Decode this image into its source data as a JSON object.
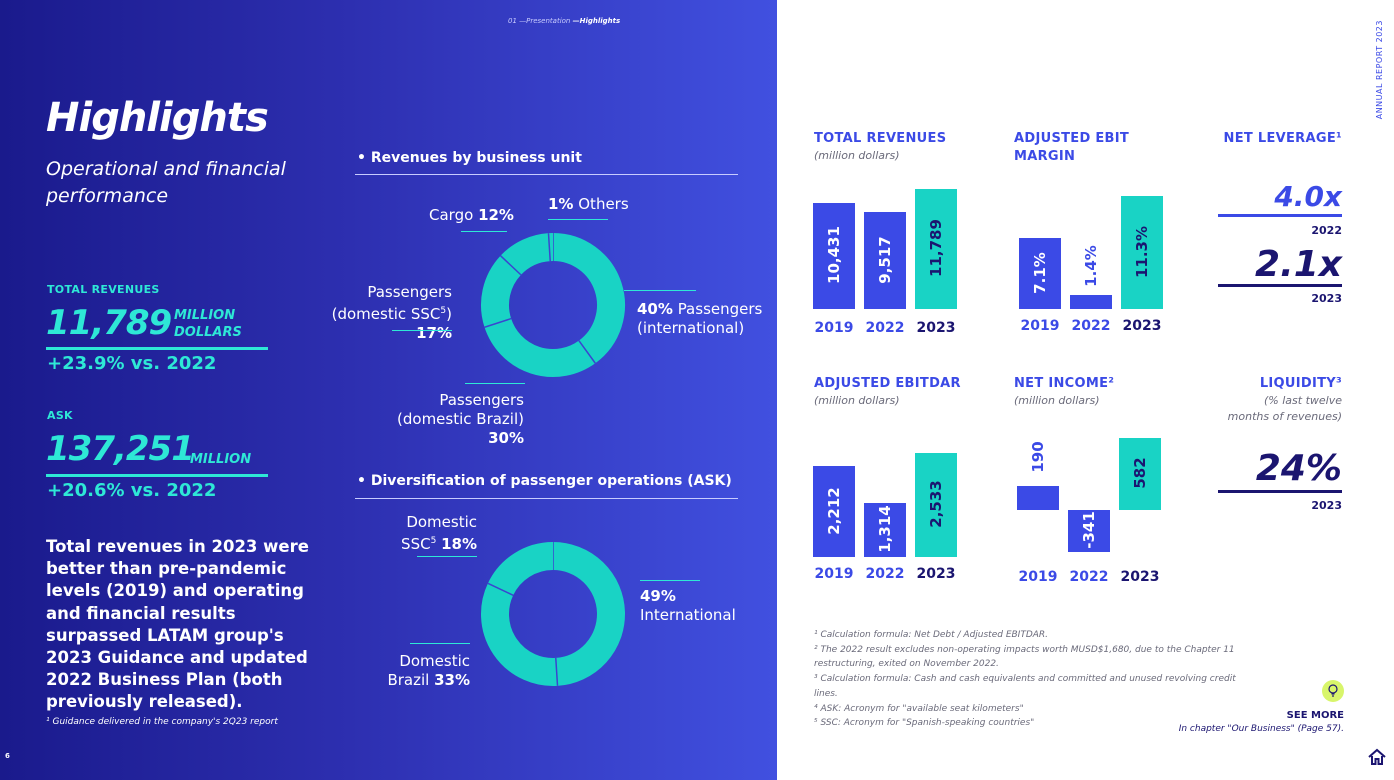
{
  "header": {
    "crumb_prefix": "01 —Presentation",
    "crumb_current": "—Highlights",
    "page_number": "6"
  },
  "left": {
    "title": "Highlights",
    "subtitle": "Operational and financial performance",
    "kpi1": {
      "label": "TOTAL REVENUES",
      "value": "11,789",
      "unit_line1": "MILLION",
      "unit_line2": "DOLLARS",
      "delta": "+23.9% vs. 2022"
    },
    "kpi2": {
      "label": "ASK",
      "value": "137,251",
      "unit": "MILLION",
      "delta": "+20.6% vs. 2022"
    },
    "summary": "Total revenues in 2023 were better than pre-pandemic levels (2019) and operating and financial results surpassed LATAM group's 2023 Guidance and updated 2022 Business Plan (both previously released).",
    "footnote": "¹ Guidance delivered in the company's 2Q23 report"
  },
  "revenues_by_unit": {
    "title": "• Revenues by business unit",
    "labels": {
      "cargo": "Cargo",
      "cargo_pct": "12%",
      "others_pct": "1%",
      "others": "Others",
      "dom_ssc_line1": "Passengers",
      "dom_ssc_line2": "(domestic SSC",
      "dom_ssc_sup": "5",
      "dom_ssc_close": ")",
      "dom_ssc_pct": "17%",
      "intl_pct": "40%",
      "intl_line1": "Passengers",
      "intl_line2": "(international)",
      "brazil_line1": "Passengers",
      "brazil_line2": "(domestic Brazil)",
      "brazil_pct": "30%"
    }
  },
  "ask_diversification": {
    "title": "• Diversification of passenger operations (ASK)",
    "labels": {
      "ssc_line1": "Domestic",
      "ssc_line2": "SSC",
      "ssc_sup": "5",
      "ssc_pct": "18%",
      "intl_pct": "49%",
      "intl": "International",
      "brazil_line1": "Domestic",
      "brazil_line2": "Brazil",
      "brazil_pct": "33%"
    }
  },
  "chart_data": [
    {
      "type": "pie",
      "title": "Revenues by business unit",
      "categories": [
        "Passengers (international)",
        "Passengers (domestic Brazil)",
        "Passengers (domestic SSC)",
        "Cargo",
        "Others"
      ],
      "values": [
        40,
        30,
        17,
        12,
        1
      ]
    },
    {
      "type": "pie",
      "title": "Diversification of passenger operations (ASK)",
      "categories": [
        "International",
        "Domestic Brazil",
        "Domestic SSC"
      ],
      "values": [
        49,
        33,
        18
      ]
    },
    {
      "type": "bar",
      "title": "TOTAL REVENUES",
      "subtitle": "(million dollars)",
      "categories": [
        "2019",
        "2022",
        "2023"
      ],
      "values": [
        10431,
        9517,
        11789
      ],
      "labels": [
        "10,431",
        "9,517",
        "11,789"
      ]
    },
    {
      "type": "bar",
      "title": "ADJUSTED EBIT MARGIN",
      "categories": [
        "2019",
        "2022",
        "2023"
      ],
      "values": [
        7.1,
        1.4,
        11.3
      ],
      "labels": [
        "7.1%",
        "1.4%",
        "11.3%"
      ]
    },
    {
      "type": "bar",
      "title": "ADJUSTED EBITDAR",
      "subtitle": "(million dollars)",
      "categories": [
        "2019",
        "2022",
        "2023"
      ],
      "values": [
        2212,
        1314,
        2533
      ],
      "labels": [
        "2,212",
        "1,314",
        "2,533"
      ]
    },
    {
      "type": "bar",
      "title": "NET INCOME²",
      "subtitle": "(million dollars)",
      "categories": [
        "2019",
        "2022",
        "2023"
      ],
      "values": [
        190,
        -341,
        582
      ],
      "labels": [
        "190",
        "-341",
        "582"
      ]
    }
  ],
  "panels": {
    "rev": {
      "title": "TOTAL REVENUES",
      "sub": "(million dollars)",
      "y1": "2019",
      "y2": "2022",
      "y3": "2023",
      "v1": "10,431",
      "v2": "9,517",
      "v3": "11,789"
    },
    "ebit": {
      "title1": "ADJUSTED EBIT",
      "title2": "MARGIN",
      "y1": "2019",
      "y2": "2022",
      "y3": "2023",
      "v1": "7.1%",
      "v2": "1.4%",
      "v3": "11.3%"
    },
    "ebitdar": {
      "title": "ADJUSTED EBITDAR",
      "sub": "(million dollars)",
      "y1": "2019",
      "y2": "2022",
      "y3": "2023",
      "v1": "2,212",
      "v2": "1,314",
      "v3": "2,533"
    },
    "ni": {
      "title": "NET INCOME²",
      "sub": "(million dollars)",
      "y1": "2019",
      "y2": "2022",
      "y3": "2023",
      "v1": "190",
      "v2": "-341",
      "v3": "582"
    },
    "leverage": {
      "title": "NET LEVERAGE¹",
      "v2022": "4.0x",
      "y2022": "2022",
      "v2023": "2.1x",
      "y2023": "2023"
    },
    "liquidity": {
      "title": "LIQUIDITY³",
      "sub1": "(% last twelve",
      "sub2": "months of revenues)",
      "value": "24%",
      "year": "2023"
    }
  },
  "footnotes": [
    "¹ Calculation formula: Net Debt / Adjusted EBITDAR.",
    "² The 2022 result excludes non-operating impacts worth MUSD$1,680, due to the Chapter 11 restructuring, exited on November 2022.",
    "³ Calculation formula: Cash and cash equivalents and committed and unused revolving credit lines.",
    "⁴ ASK: Acronym for \"available seat kilometers\"",
    "⁵ SSC: Acronym for \"Spanish-speaking countries\""
  ],
  "see_more": {
    "label": "SEE MORE",
    "sub": "In chapter \"Our Business\" (Page 57)."
  },
  "side_tag": "ANNUAL REPORT 2023",
  "colors": {
    "teal": "#19d3c5",
    "blue": "#3b4ae6",
    "navy": "#1b1570"
  }
}
